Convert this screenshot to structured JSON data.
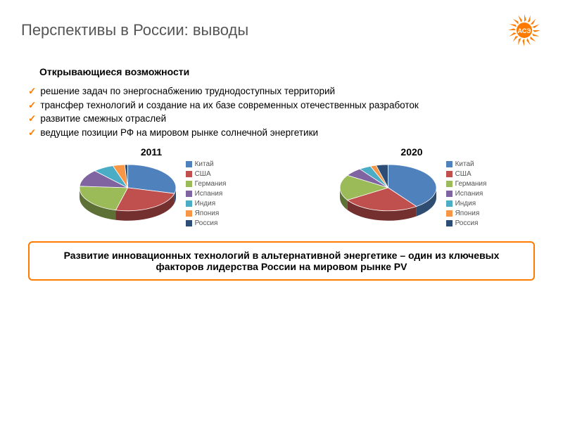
{
  "title": "Перспективы в России: выводы",
  "subtitle": "Открывающиеся возможности",
  "logo": {
    "text": "АСЭ",
    "color": "#ff7a00"
  },
  "bullets": {
    "check_color": "#ff7a00",
    "items": [
      "решение задач по энергоснабжению труднодоступных территорий",
      "трансфер технологий и создание на их базе современных отечественных разработок",
      "развитие смежных отраслей",
      "ведущие позиции РФ на мировом рынке солнечной энергетики"
    ]
  },
  "charts": {
    "pie_2011": {
      "type": "pie",
      "title": "2011",
      "size": 145,
      "tilt": 0.48,
      "depth": 14,
      "cx_offset": 0,
      "legend": [
        {
          "label": "Китай",
          "color": "#4f81bd"
        },
        {
          "label": "США",
          "color": "#c0504d"
        },
        {
          "label": "Германия",
          "color": "#9bbb59"
        },
        {
          "label": "Испания",
          "color": "#8064a2"
        },
        {
          "label": "Индия",
          "color": "#4bacc6"
        },
        {
          "label": "Япония",
          "color": "#f79646"
        },
        {
          "label": "Россия",
          "color": "#2c4d75"
        }
      ],
      "slices": [
        {
          "value": 29,
          "color": "#4f81bd"
        },
        {
          "value": 25,
          "color": "#c0504d"
        },
        {
          "value": 22,
          "color": "#9bbb59"
        },
        {
          "value": 12,
          "color": "#8064a2"
        },
        {
          "value": 7,
          "color": "#4bacc6"
        },
        {
          "value": 4,
          "color": "#f79646"
        },
        {
          "value": 1,
          "color": "#2c4d75"
        }
      ]
    },
    "pie_2020": {
      "type": "pie",
      "title": "2020",
      "size": 145,
      "tilt": 0.48,
      "depth": 14,
      "cx_offset": 0,
      "legend": [
        {
          "label": "Китай",
          "color": "#4f81bd"
        },
        {
          "label": "США",
          "color": "#c0504d"
        },
        {
          "label": "Германия",
          "color": "#9bbb59"
        },
        {
          "label": "Испания",
          "color": "#8064a2"
        },
        {
          "label": "Индия",
          "color": "#4bacc6"
        },
        {
          "label": "Япония",
          "color": "#f79646"
        },
        {
          "label": "Россия",
          "color": "#2c4d75"
        }
      ],
      "slices": [
        {
          "value": 40,
          "color": "#4f81bd"
        },
        {
          "value": 26,
          "color": "#c0504d"
        },
        {
          "value": 18,
          "color": "#9bbb59"
        },
        {
          "value": 6,
          "color": "#8064a2"
        },
        {
          "value": 4,
          "color": "#4bacc6"
        },
        {
          "value": 2,
          "color": "#f79646"
        },
        {
          "value": 4,
          "color": "#2c4d75"
        }
      ]
    }
  },
  "callout": "Развитие инновационных технологий в альтернативной энергетике – один из ключевых факторов лидерства России на мировом рынке PV"
}
